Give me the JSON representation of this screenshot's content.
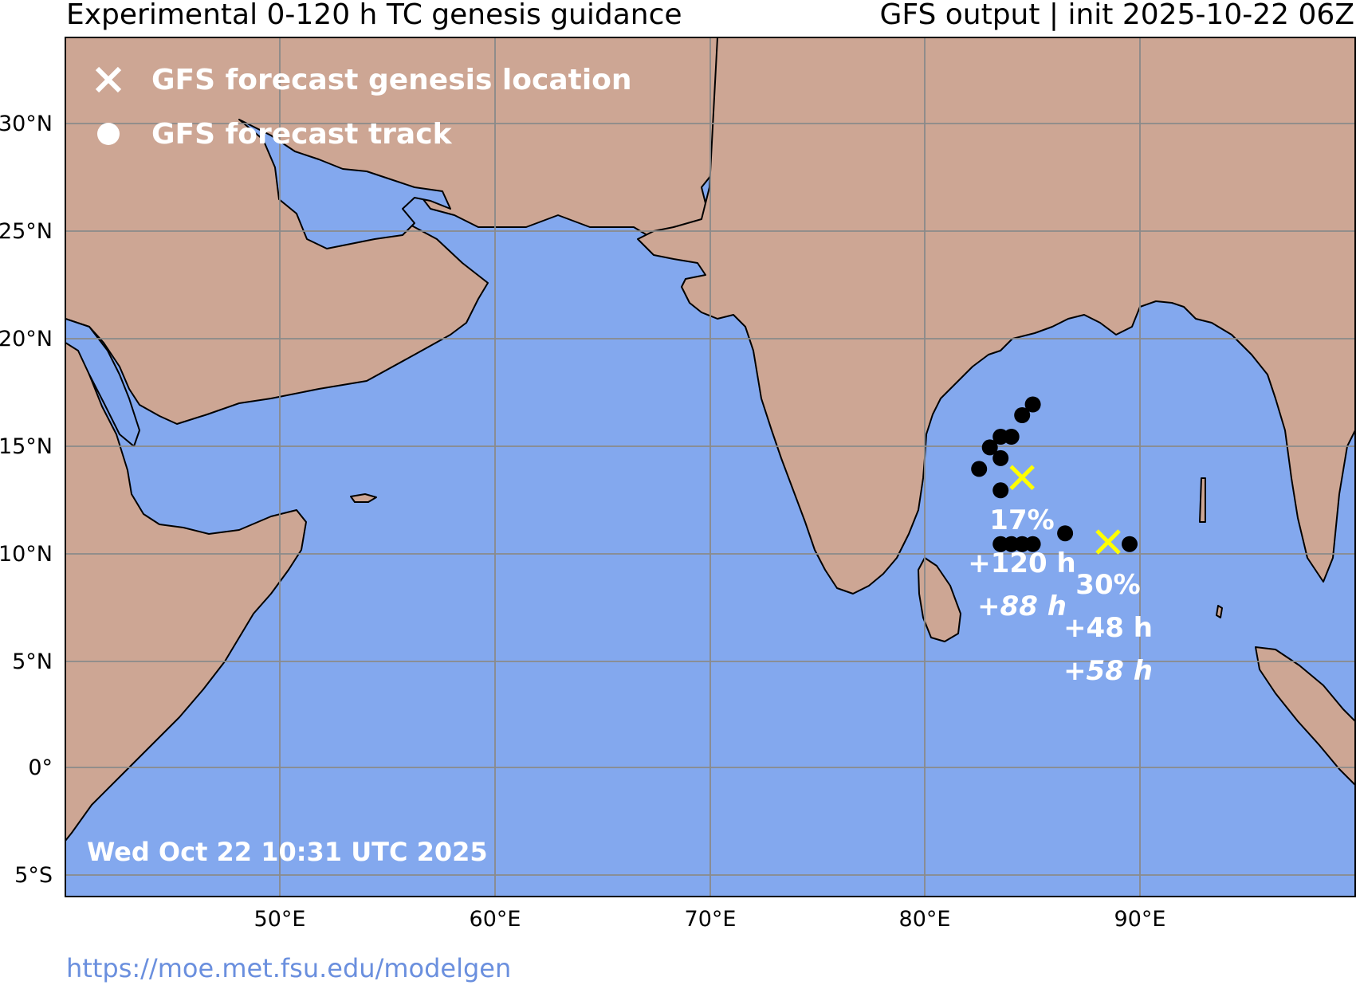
{
  "header": {
    "title_left": "Experimental 0-120 h TC genesis guidance",
    "title_right": "GFS output | init 2025-10-22 06Z"
  },
  "legend": {
    "genesis_label": "GFS forecast genesis location",
    "track_label": "GFS forecast track"
  },
  "timestamp": "Wed Oct 22 10:31 UTC 2025",
  "footer_url": "https://moe.met.fsu.edu/modelgen",
  "axes": {
    "lon_ticks": [
      "50°E",
      "60°E",
      "70°E",
      "80°E",
      "90°E"
    ],
    "lat_ticks": [
      "30°N",
      "25°N",
      "20°N",
      "15°N",
      "10°N",
      "5°N",
      "0°",
      "5°S"
    ]
  },
  "colors": {
    "ocean": "#83a8ee",
    "land": "#cda694",
    "grid": "#8a8a8a",
    "genesis_marker": "#ffff00",
    "track_marker": "#000000",
    "label_text": "#ffffff"
  },
  "systems": [
    {
      "genesis_lon": 84.5,
      "genesis_lat": 13.5,
      "probability": "17%",
      "lead_time": "+120 h",
      "alt_lead_time": "+88 h",
      "track": [
        [
          82.5,
          13.9
        ],
        [
          83.0,
          14.9
        ],
        [
          83.5,
          15.4
        ],
        [
          84.0,
          15.4
        ],
        [
          83.5,
          14.4
        ],
        [
          83.5,
          12.9
        ],
        [
          84.5,
          16.4
        ],
        [
          85.0,
          16.9
        ]
      ]
    },
    {
      "genesis_lon": 88.5,
      "genesis_lat": 10.5,
      "probability": "30%",
      "lead_time": "+48 h",
      "alt_lead_time": "+58 h",
      "track": [
        [
          83.5,
          10.4
        ],
        [
          84.0,
          10.4
        ],
        [
          84.5,
          10.4
        ],
        [
          85.0,
          10.4
        ],
        [
          86.5,
          10.9
        ],
        [
          89.5,
          10.4
        ]
      ]
    }
  ]
}
